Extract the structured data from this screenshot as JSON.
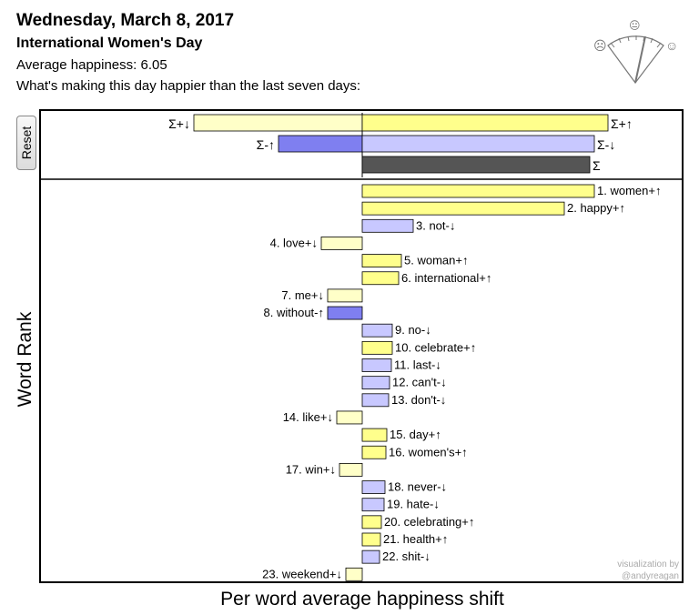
{
  "header": {
    "date": "Wednesday, March 8, 2017",
    "subtitle": "International Women's Day",
    "average": "Average happiness: 6.05",
    "question": "What's making this day happier than the last seven days:"
  },
  "controls": {
    "reset_label": "Reset"
  },
  "credit": {
    "line1": "visualization by",
    "line2": "@andyreagan"
  },
  "gauge": {
    "frown": "☹",
    "neutral": "😐",
    "smile": "☺"
  },
  "colors": {
    "pos_up": "#ffff8c",
    "pos_down": "#ffffc8",
    "neg_up": "#7f7ff0",
    "neg_down": "#c8c8ff",
    "total": "#555555"
  },
  "chart_data": {
    "type": "bar",
    "ylabel": "Word Rank",
    "xlabel": "Per word average happiness shift",
    "summary": [
      {
        "label": "Σ+↓",
        "value": -185
      },
      {
        "label": "Σ+↑",
        "value": 270
      },
      {
        "label": "Σ-↑",
        "value": -92
      },
      {
        "label": "Σ-↓",
        "value": 255
      },
      {
        "label": "Σ",
        "value": 250
      }
    ],
    "words": [
      {
        "label": "1. women+↑",
        "value": 255
      },
      {
        "label": "2. happy+↑",
        "value": 222
      },
      {
        "label": "3. not-↓",
        "value": 56
      },
      {
        "label": "4. love+↓",
        "value": -45
      },
      {
        "label": "5. woman+↑",
        "value": 43
      },
      {
        "label": "6. international+↑",
        "value": 40
      },
      {
        "label": "7. me+↓",
        "value": -38
      },
      {
        "label": "8. without-↑",
        "value": -38
      },
      {
        "label": "9. no-↓",
        "value": 33
      },
      {
        "label": "10. celebrate+↑",
        "value": 33
      },
      {
        "label": "11. last-↓",
        "value": 32
      },
      {
        "label": "12. can't-↓",
        "value": 30
      },
      {
        "label": "13. don't-↓",
        "value": 29
      },
      {
        "label": "14. like+↓",
        "value": -28
      },
      {
        "label": "15. day+↑",
        "value": 27
      },
      {
        "label": "16. women's+↑",
        "value": 26
      },
      {
        "label": "17. win+↓",
        "value": -25
      },
      {
        "label": "18. never-↓",
        "value": 25
      },
      {
        "label": "19. hate-↓",
        "value": 24
      },
      {
        "label": "20. celebrating+↑",
        "value": 21
      },
      {
        "label": "21. health+↑",
        "value": 20
      },
      {
        "label": "22. shit-↓",
        "value": 19
      },
      {
        "label": "23. weekend+↓",
        "value": -18
      }
    ]
  }
}
